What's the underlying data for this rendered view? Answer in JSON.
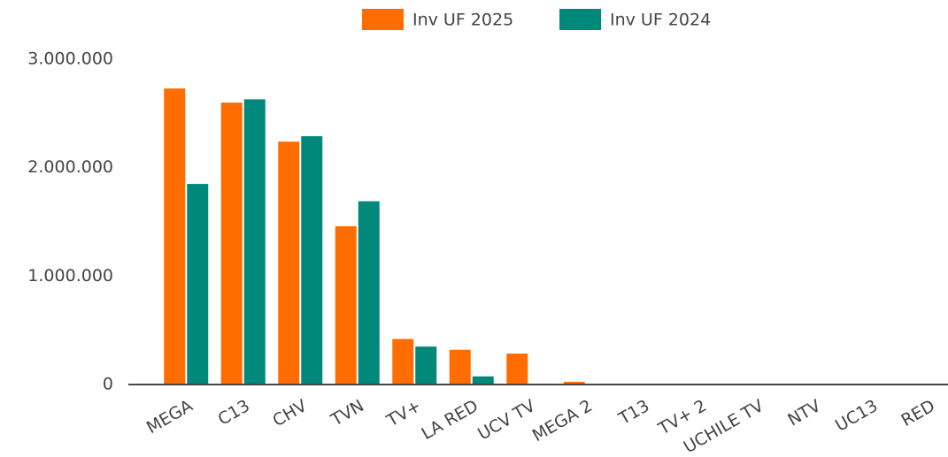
{
  "chart_data": {
    "type": "bar",
    "categories": [
      "MEGA",
      "C13",
      "CHV",
      "TVN",
      "TV+",
      "LA RED",
      "UCV TV",
      "MEGA 2",
      "T13",
      "TV+ 2",
      "UCHILE TV",
      "NTV",
      "UC13",
      "RED"
    ],
    "series": [
      {
        "name": "Inv UF 2025",
        "color": "#ff6d00",
        "values": [
          2730000,
          2600000,
          2240000,
          1460000,
          420000,
          320000,
          285000,
          25000,
          0,
          0,
          0,
          0,
          0,
          0
        ]
      },
      {
        "name": "Inv UF 2024",
        "color": "#00897b",
        "values": [
          1850000,
          2630000,
          2290000,
          1690000,
          350000,
          75000,
          0,
          0,
          0,
          0,
          0,
          0,
          0,
          0
        ]
      }
    ],
    "ylim": [
      0,
      3000000
    ],
    "yticks": [
      0,
      {
        "value": 1000000,
        "label": "1.000.000"
      },
      {
        "value": 2000000,
        "label": "2.000.000"
      },
      {
        "value": 3000000,
        "label": "3.000.000"
      }
    ],
    "grid": false,
    "legend": "top"
  }
}
